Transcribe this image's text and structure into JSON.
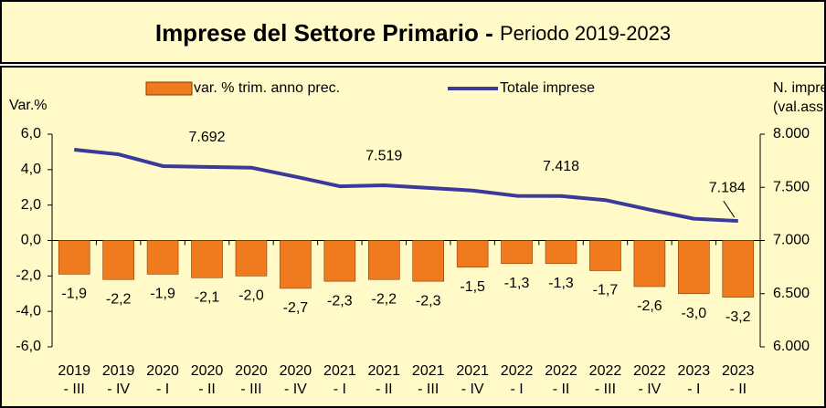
{
  "chart_data": {
    "type": "bar",
    "title": "Imprese del Settore Primario - ",
    "subtitle": "Periodo 2019-2023",
    "y_label": "Var.%",
    "y2_label": [
      "N. imprese",
      "(val.ass.)"
    ],
    "categories": [
      [
        "2019",
        "- III"
      ],
      [
        "2019",
        "- IV"
      ],
      [
        "2020",
        "- I"
      ],
      [
        "2020",
        "- II"
      ],
      [
        "2020",
        "- III"
      ],
      [
        "2020",
        "- IV"
      ],
      [
        "2021",
        "- I"
      ],
      [
        "2021",
        "- II"
      ],
      [
        "2021",
        "- III"
      ],
      [
        "2021",
        "- IV"
      ],
      [
        "2022",
        "- I"
      ],
      [
        "2022",
        "- II"
      ],
      [
        "2022",
        "- III"
      ],
      [
        "2022",
        "- IV"
      ],
      [
        "2023",
        "- I"
      ],
      [
        "2023",
        "- II"
      ]
    ],
    "series": [
      {
        "name": "var. % trim. anno prec.",
        "type": "bar",
        "axis": "y",
        "color": "#f07a1e",
        "values": [
          -1.9,
          -2.2,
          -1.9,
          -2.1,
          -2.0,
          -2.7,
          -2.3,
          -2.2,
          -2.3,
          -1.5,
          -1.3,
          -1.3,
          -1.7,
          -2.6,
          -3.0,
          -3.2
        ],
        "value_labels": [
          "-1,9",
          "-2,2",
          "-1,9",
          "-2,1",
          "-2,0",
          "-2,7",
          "-2,3",
          "-2,2",
          "-2,3",
          "-1,5",
          "-1,3",
          "-1,3",
          "-1,7",
          "-2,6",
          "-3,0",
          "-3,2"
        ]
      },
      {
        "name": "Totale imprese",
        "type": "line",
        "axis": "y2",
        "color": "#3a3a9a",
        "values": [
          7854,
          7811,
          7700,
          7692,
          7685,
          7600,
          7510,
          7519,
          7495,
          7470,
          7420,
          7418,
          7380,
          7290,
          7205,
          7184
        ],
        "value_labels": [
          null,
          null,
          null,
          "7.692",
          null,
          null,
          null,
          "7.519",
          null,
          null,
          null,
          "7.418",
          null,
          null,
          null,
          "7.184"
        ]
      }
    ],
    "ylim": [
      -6,
      6
    ],
    "yticks": [
      {
        "value": -6,
        "label": "-6,0"
      },
      {
        "value": -4,
        "label": "-4,0"
      },
      {
        "value": -2,
        "label": "-2,0"
      },
      {
        "value": 0,
        "label": "0,0"
      },
      {
        "value": 2,
        "label": "2,0"
      },
      {
        "value": 4,
        "label": "4,0"
      },
      {
        "value": 6,
        "label": "6,0"
      }
    ],
    "y2lim": [
      6000,
      8000
    ],
    "y2ticks": [
      {
        "value": 6000,
        "label": "6.000"
      },
      {
        "value": 6500,
        "label": "6.500"
      },
      {
        "value": 7000,
        "label": "7.000"
      },
      {
        "value": 7500,
        "label": "7.500"
      },
      {
        "value": 8000,
        "label": "8.000"
      }
    ],
    "legend": "top"
  }
}
